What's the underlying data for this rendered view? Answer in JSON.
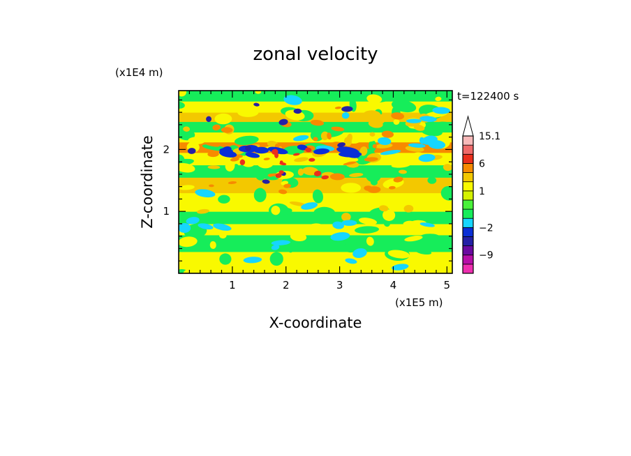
{
  "chart_data": {
    "type": "heatmap",
    "title": "zonal velocity",
    "time_label": "t=122400 s",
    "xlabel": "X-coordinate",
    "ylabel": "Z-coordinate",
    "x_unit": "(x1E5 m)",
    "y_unit": "(x1E4 m)",
    "xlim": [
      0,
      5.1
    ],
    "ylim": [
      0,
      2.95
    ],
    "x_ticks": [
      1,
      2,
      3,
      4,
      5
    ],
    "y_ticks": [
      1,
      2
    ],
    "colorbar": {
      "levels": [
        -15,
        -12,
        -9,
        -6,
        -3,
        -2,
        -1,
        0,
        0.5,
        1,
        2,
        3,
        6,
        9,
        12,
        15.1
      ],
      "colors": [
        "#ee2fb0",
        "#b70fa8",
        "#6a0aa0",
        "#2420a6",
        "#0a2fd6",
        "#16d6ff",
        "#16ed5a",
        "#49f23a",
        "#d4f200",
        "#f9f900",
        "#f3c800",
        "#f78a00",
        "#ea2f1c",
        "#ef6a6a",
        "#f7b9b9"
      ],
      "labels": [
        {
          "value": 15.1,
          "text": "15.1"
        },
        {
          "value": 6,
          "text": "6"
        },
        {
          "value": 1,
          "text": "1"
        },
        {
          "value": -2,
          "text": "−2"
        },
        {
          "value": -9,
          "text": "−9"
        }
      ],
      "extend": "max"
    }
  }
}
